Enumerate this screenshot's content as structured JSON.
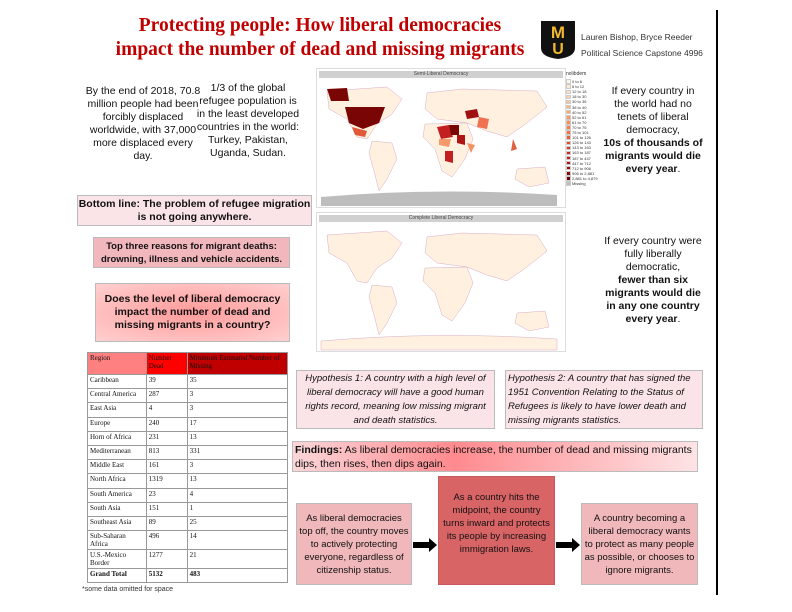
{
  "header": {
    "title_line1": "Protecting people: How liberal democracies",
    "title_line2": "impact the number of dead and missing migrants",
    "authors": "Lauren Bishop, Bryce Reeder",
    "course": "Political Science Capstone 4996",
    "logo_letters": "MU"
  },
  "left": {
    "stat1": "By the end of 2018, 70.8 million people had been forcibly displaced worldwide, with 37,000 more displaced every day.",
    "stat2": "1/3 of the global refugee population is in the least developed countries in the world: Turkey, Pakistan, Uganda, Sudan.",
    "bottom_line": "Bottom line: The problem of refugee migration is not going anywhere.",
    "top_three": "Top three reasons for migrant deaths: drowning, illness and vehicle accidents.",
    "question": "Does the level of liberal democracy impact the number of dead and missing migrants in a country?"
  },
  "table": {
    "headers": [
      "Region",
      "Number Dead",
      "Minimum Estimated Number of Missing"
    ],
    "rows": [
      [
        "Caribbean",
        "39",
        "35"
      ],
      [
        "Central America",
        "287",
        "3"
      ],
      [
        "East Asia",
        "4",
        "3"
      ],
      [
        "Europe",
        "240",
        "17"
      ],
      [
        "Horn of Africa",
        "231",
        "13"
      ],
      [
        "Mediterranean",
        "813",
        "331"
      ],
      [
        "Middle East",
        "161",
        "3"
      ],
      [
        "North Africa",
        "1319",
        "13"
      ],
      [
        "South America",
        "23",
        "4"
      ],
      [
        "South Asia",
        "151",
        "1"
      ],
      [
        "Southeast Asia",
        "89",
        "25"
      ],
      [
        "Sub-Saharan Africa",
        "496",
        "14"
      ],
      [
        "U.S.-Mexico Border",
        "1277",
        "21"
      ]
    ],
    "total": [
      "Grand Total",
      "5132",
      "483"
    ],
    "note": "*some data omitted for space"
  },
  "maps": {
    "map1_title": "Semi-Liberal Democracy",
    "map2_title": "Complete Liberal Democracy",
    "legend_title": "nolibdem",
    "legend": [
      "0 to 6",
      "6 to 12",
      "12 to 18",
      "18 to 30",
      "30 to 36",
      "36 to 40",
      "40 to 52",
      "52 to 61",
      "61 to 70",
      "70 to 75",
      "75 to 101",
      "101 to 126",
      "126 to 143",
      "143 to 163",
      "163 to 187",
      "187 to 447",
      "447 to 712",
      "712 to 906",
      "906 to 2,881",
      "2,881 to 4,879",
      "Missing"
    ],
    "legend_colors": [
      "#fff5eb",
      "#fee9d6",
      "#fde0c5",
      "#fdd2a8",
      "#fdc591",
      "#fdb77a",
      "#fca868",
      "#fc9a5c",
      "#fb8b50",
      "#f87c45",
      "#f46d3c",
      "#ec5c33",
      "#e24b2b",
      "#d63a24",
      "#c82c1e",
      "#b81f19",
      "#a61414",
      "#930d0d",
      "#800808",
      "#6b0303",
      "#bdbdbd"
    ]
  },
  "right": {
    "p1_plain": "If every country in the world had no tenets of liberal democracy,",
    "p1_bold": "10s of thousands of migrants would die every year",
    "p2_plain": "If every country were fully liberally democratic,",
    "p2_bold": "fewer than six migrants would die in any one country every year",
    "period": "."
  },
  "hypotheses": {
    "h1": "Hypothesis 1: A country with a high level of liberal democracy will have a good human rights record, meaning low missing migrant and death statistics.",
    "h2": "Hypothesis 2: A country that has signed the 1951 Convention Relating to the Status of Refugees is likely to have lower death and missing migrants statistics."
  },
  "findings": {
    "label": "Findings:",
    "text": " As liberal democracies increase, the number of dead and missing migrants dips, then rises, then dips again."
  },
  "flow": {
    "a": "As liberal democracies top off, the country moves to actively protecting everyone, regardless of citizenship status.",
    "b": "As a country hits the midpoint, the country turns inward and protects its people by increasing immigration laws.",
    "c": "A country becoming a liberal democracy wants to protect as many people as possible, or chooses to ignore migrants."
  }
}
